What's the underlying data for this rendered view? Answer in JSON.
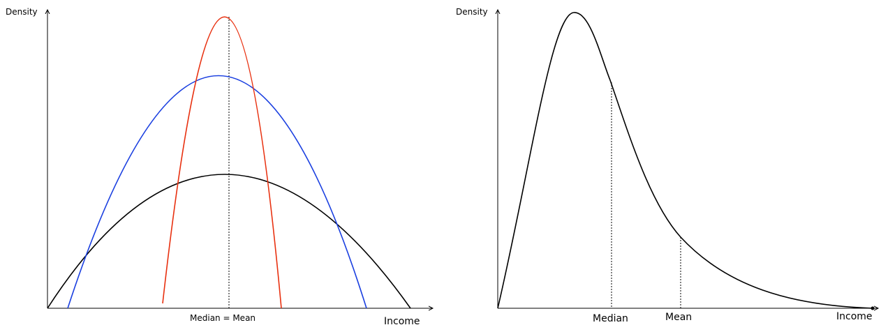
{
  "left_panel": {
    "y_axis_label": "Density",
    "x_axis_label": "Income",
    "center_label": "Median =  Mean",
    "curve_colors": {
      "narrow": "#e8300f",
      "medium": "#1a3fe0",
      "wide": "#000000"
    }
  },
  "right_panel": {
    "y_axis_label": "Density",
    "x_axis_label": "Income",
    "median_label": "Median",
    "mean_label": "Mean",
    "curve_color": "#000000"
  }
}
